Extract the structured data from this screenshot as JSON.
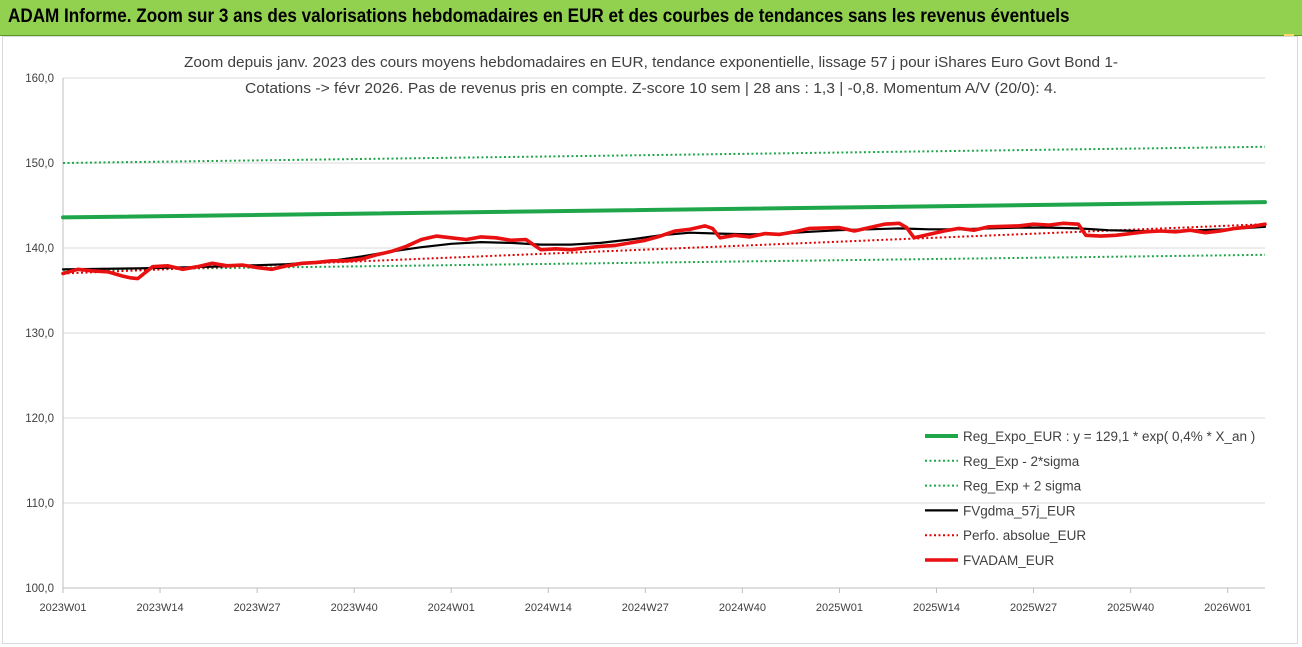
{
  "header": {
    "banner_title": "ADAM Informe. Zoom sur 3 ans des valorisations hebdomadaires en EUR et des courbes de tendances sans les revenus éventuels"
  },
  "colors": {
    "banner_bg": "#92d050",
    "reg_expo": "#1fa64a",
    "sigma": "#1fa64a",
    "fvgdma": "#000000",
    "perfo": "#e00000",
    "fvadam": "#e81010"
  },
  "chart_data": {
    "type": "line",
    "title_lines": [
      "Zoom depuis janv. 2023 des cours moyens hebdomadaires en EUR, tendance exponentielle, lissage 57 j pour iShares Euro Govt Bond 1-",
      "Cotations -> févr 2026. Pas de revenus pris en compte. Z-score 10 sem | 28 ans : 1,3 | -0,8. Momentum A/V (20/0): 4."
    ],
    "ylim": [
      100,
      160
    ],
    "y_ticks": [
      "100,0",
      "110,0",
      "120,0",
      "130,0",
      "140,0",
      "150,0",
      "160,0"
    ],
    "x_range_weeks": [
      0,
      161
    ],
    "x_ticks": [
      {
        "label": "2023W01",
        "week": 0
      },
      {
        "label": "2023W14",
        "week": 13
      },
      {
        "label": "2023W27",
        "week": 26
      },
      {
        "label": "2023W40",
        "week": 39
      },
      {
        "label": "2024W01",
        "week": 52
      },
      {
        "label": "2024W14",
        "week": 65
      },
      {
        "label": "2024W27",
        "week": 78
      },
      {
        "label": "2024W40",
        "week": 91
      },
      {
        "label": "2025W01",
        "week": 104
      },
      {
        "label": "2025W14",
        "week": 117
      },
      {
        "label": "2025W27",
        "week": 130
      },
      {
        "label": "2025W40",
        "week": 143
      },
      {
        "label": "2026W01",
        "week": 156
      }
    ],
    "legend_position": "bottom-right",
    "grid": "horizontal",
    "series": [
      {
        "name": "Reg_Expo_EUR : y = 129,1 * exp( 0,4% *  X_an )",
        "style": "solid-thick",
        "color": "#1fa64a",
        "points": [
          [
            0,
            143.6
          ],
          [
            161,
            145.4
          ]
        ]
      },
      {
        "name": "Reg_Exp - 2*sigma",
        "style": "dotted",
        "color": "#1fa64a",
        "points": [
          [
            0,
            137.4
          ],
          [
            161,
            139.2
          ]
        ]
      },
      {
        "name": "Reg_Exp + 2 sigma",
        "style": "dotted",
        "color": "#1fa64a",
        "points": [
          [
            0,
            150.0
          ],
          [
            161,
            151.9
          ]
        ]
      },
      {
        "name": "FVgdma_57j_EUR",
        "style": "solid",
        "color": "#000000",
        "points": [
          [
            0,
            137.5
          ],
          [
            10,
            137.6
          ],
          [
            20,
            137.8
          ],
          [
            30,
            138.1
          ],
          [
            36,
            138.5
          ],
          [
            40,
            139.0
          ],
          [
            44,
            139.6
          ],
          [
            48,
            140.1
          ],
          [
            52,
            140.5
          ],
          [
            56,
            140.7
          ],
          [
            60,
            140.6
          ],
          [
            64,
            140.4
          ],
          [
            68,
            140.4
          ],
          [
            72,
            140.6
          ],
          [
            76,
            141.0
          ],
          [
            80,
            141.5
          ],
          [
            84,
            141.8
          ],
          [
            88,
            141.7
          ],
          [
            92,
            141.6
          ],
          [
            96,
            141.7
          ],
          [
            100,
            141.9
          ],
          [
            104,
            142.1
          ],
          [
            108,
            142.2
          ],
          [
            112,
            142.3
          ],
          [
            116,
            142.2
          ],
          [
            120,
            142.2
          ],
          [
            124,
            142.3
          ],
          [
            128,
            142.4
          ],
          [
            132,
            142.4
          ],
          [
            136,
            142.3
          ],
          [
            140,
            142.1
          ],
          [
            144,
            142.0
          ],
          [
            148,
            142.0
          ],
          [
            152,
            142.1
          ],
          [
            156,
            142.2
          ],
          [
            161,
            142.5
          ]
        ]
      },
      {
        "name": "Perfo. absolue_EUR",
        "style": "dotted",
        "color": "#e00000",
        "points": [
          [
            0,
            137.0
          ],
          [
            161,
            142.8
          ]
        ]
      },
      {
        "name": "FVADAM_EUR",
        "style": "solid-thick",
        "color": "#e81010",
        "points": [
          [
            0,
            137.0
          ],
          [
            2,
            137.5
          ],
          [
            4,
            137.3
          ],
          [
            6,
            137.2
          ],
          [
            8,
            136.7
          ],
          [
            9,
            136.5
          ],
          [
            10,
            136.4
          ],
          [
            12,
            137.8
          ],
          [
            14,
            137.9
          ],
          [
            16,
            137.5
          ],
          [
            18,
            137.8
          ],
          [
            20,
            138.2
          ],
          [
            22,
            137.9
          ],
          [
            24,
            138.0
          ],
          [
            26,
            137.7
          ],
          [
            28,
            137.5
          ],
          [
            30,
            137.9
          ],
          [
            32,
            138.2
          ],
          [
            34,
            138.3
          ],
          [
            36,
            138.5
          ],
          [
            38,
            138.5
          ],
          [
            40,
            138.7
          ],
          [
            42,
            139.2
          ],
          [
            44,
            139.6
          ],
          [
            46,
            140.2
          ],
          [
            48,
            141.0
          ],
          [
            50,
            141.4
          ],
          [
            52,
            141.2
          ],
          [
            54,
            141.0
          ],
          [
            56,
            141.3
          ],
          [
            58,
            141.2
          ],
          [
            60,
            140.9
          ],
          [
            62,
            141.0
          ],
          [
            64,
            139.8
          ],
          [
            66,
            139.9
          ],
          [
            68,
            139.8
          ],
          [
            70,
            140.0
          ],
          [
            72,
            140.2
          ],
          [
            74,
            140.3
          ],
          [
            76,
            140.6
          ],
          [
            78,
            140.9
          ],
          [
            80,
            141.4
          ],
          [
            82,
            142.0
          ],
          [
            84,
            142.2
          ],
          [
            86,
            142.6
          ],
          [
            87,
            142.3
          ],
          [
            88,
            141.2
          ],
          [
            90,
            141.5
          ],
          [
            92,
            141.3
          ],
          [
            94,
            141.7
          ],
          [
            96,
            141.6
          ],
          [
            98,
            141.9
          ],
          [
            100,
            142.3
          ],
          [
            104,
            142.4
          ],
          [
            106,
            142.0
          ],
          [
            108,
            142.4
          ],
          [
            110,
            142.8
          ],
          [
            112,
            142.9
          ],
          [
            113,
            142.4
          ],
          [
            114,
            141.2
          ],
          [
            116,
            141.6
          ],
          [
            118,
            142.0
          ],
          [
            120,
            142.3
          ],
          [
            122,
            142.1
          ],
          [
            124,
            142.5
          ],
          [
            128,
            142.6
          ],
          [
            130,
            142.8
          ],
          [
            132,
            142.7
          ],
          [
            134,
            142.9
          ],
          [
            136,
            142.8
          ],
          [
            137,
            141.5
          ],
          [
            139,
            141.4
          ],
          [
            141,
            141.5
          ],
          [
            143,
            141.7
          ],
          [
            145,
            141.9
          ],
          [
            147,
            142.0
          ],
          [
            149,
            141.9
          ],
          [
            151,
            142.1
          ],
          [
            153,
            141.8
          ],
          [
            155,
            142.0
          ],
          [
            157,
            142.3
          ],
          [
            159,
            142.5
          ],
          [
            161,
            142.8
          ]
        ]
      }
    ]
  }
}
